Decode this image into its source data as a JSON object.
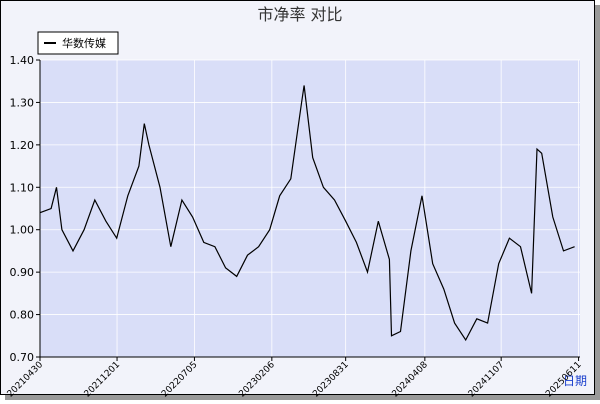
{
  "chart_data": {
    "type": "line",
    "title": "市净率  对比",
    "x_label": "日期",
    "x": [
      "20210430",
      "20210531",
      "20210615",
      "20210630",
      "20210731",
      "20210831",
      "20210930",
      "20211031",
      "20211130",
      "20211231",
      "20220131",
      "20220215",
      "20220228",
      "20220331",
      "20220430",
      "20220531",
      "20220630",
      "20220731",
      "20220831",
      "20220930",
      "20221031",
      "20221130",
      "20221231",
      "20230131",
      "20230228",
      "20230331",
      "20230430",
      "20230507",
      "20230531",
      "20230630",
      "20230731",
      "20230831",
      "20230930",
      "20231031",
      "20231130",
      "20231231",
      "20240106",
      "20240131",
      "20240229",
      "20240331",
      "20240430",
      "20240531",
      "20240630",
      "20240731",
      "20240831",
      "20240930",
      "20241031",
      "20241130",
      "20241231",
      "20250131",
      "20250215",
      "20250228",
      "20250331",
      "20250430",
      "20250531"
    ],
    "series": [
      {
        "name": "华数传媒",
        "color": "#000000",
        "values": [
          1.04,
          1.05,
          1.1,
          1.0,
          0.95,
          1.0,
          1.07,
          1.02,
          0.98,
          1.08,
          1.15,
          1.25,
          1.2,
          1.1,
          0.96,
          1.07,
          1.03,
          0.97,
          0.96,
          0.91,
          0.89,
          0.94,
          0.96,
          1.0,
          1.08,
          1.12,
          1.3,
          1.34,
          1.17,
          1.1,
          1.07,
          1.02,
          0.97,
          0.9,
          1.02,
          0.93,
          0.75,
          0.76,
          0.95,
          1.08,
          0.92,
          0.86,
          0.78,
          0.74,
          0.79,
          0.78,
          0.92,
          0.98,
          0.96,
          0.85,
          1.19,
          1.18,
          1.03,
          0.95,
          0.96
        ]
      }
    ],
    "xlim": [
      "20210430",
      "20250615"
    ],
    "xticks": [
      "20210430",
      "20211201",
      "20220705",
      "20230206",
      "20230831",
      "20240408",
      "20241107",
      "20250611"
    ],
    "ylim": [
      0.7,
      1.4
    ],
    "yticks": [
      {
        "value": 0.7,
        "label": "0.70"
      },
      {
        "value": 0.8,
        "label": "0.80"
      },
      {
        "value": 0.9,
        "label": "0.90"
      },
      {
        "value": 1.0,
        "label": "1.00"
      },
      {
        "value": 1.1,
        "label": "1.10"
      },
      {
        "value": 1.2,
        "label": "1.20"
      },
      {
        "value": 1.3,
        "label": "1.30"
      },
      {
        "value": 1.4,
        "label": "1.40"
      }
    ],
    "grid": true
  }
}
